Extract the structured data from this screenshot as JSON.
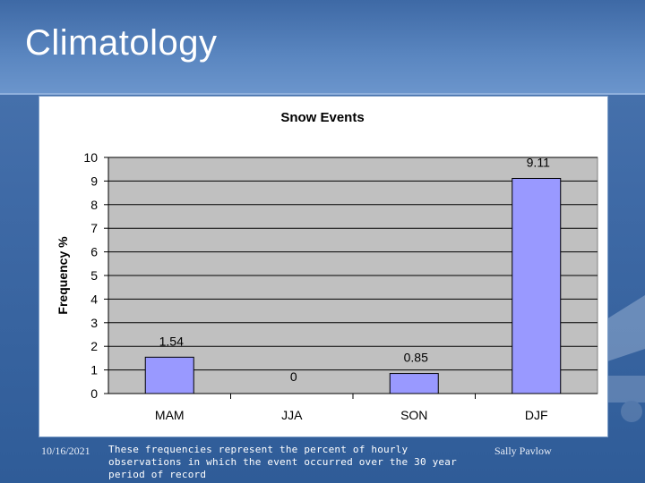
{
  "slide": {
    "title": "Climatology",
    "date": "10/16/2021",
    "note": "These frequencies represent the percent of hourly observations in which the event occurred over the 30 year period of record",
    "author": "Sally Pavlow"
  },
  "colors": {
    "bar": "#9999ff",
    "plot_bg": "#c0c0c0",
    "grid": "#000000"
  },
  "chart_data": {
    "type": "bar",
    "title": "Snow Events",
    "xlabel": "",
    "ylabel": "Frequency %",
    "categories": [
      "MAM",
      "JJA",
      "SON",
      "DJF"
    ],
    "values": [
      1.54,
      0,
      0.85,
      9.11
    ],
    "data_labels": [
      "1.54",
      "0",
      "0.85",
      "9.11"
    ],
    "ylim": [
      0,
      10
    ],
    "yticks": [
      0,
      1,
      2,
      3,
      4,
      5,
      6,
      7,
      8,
      9,
      10
    ],
    "grid": true,
    "legend": "none"
  }
}
